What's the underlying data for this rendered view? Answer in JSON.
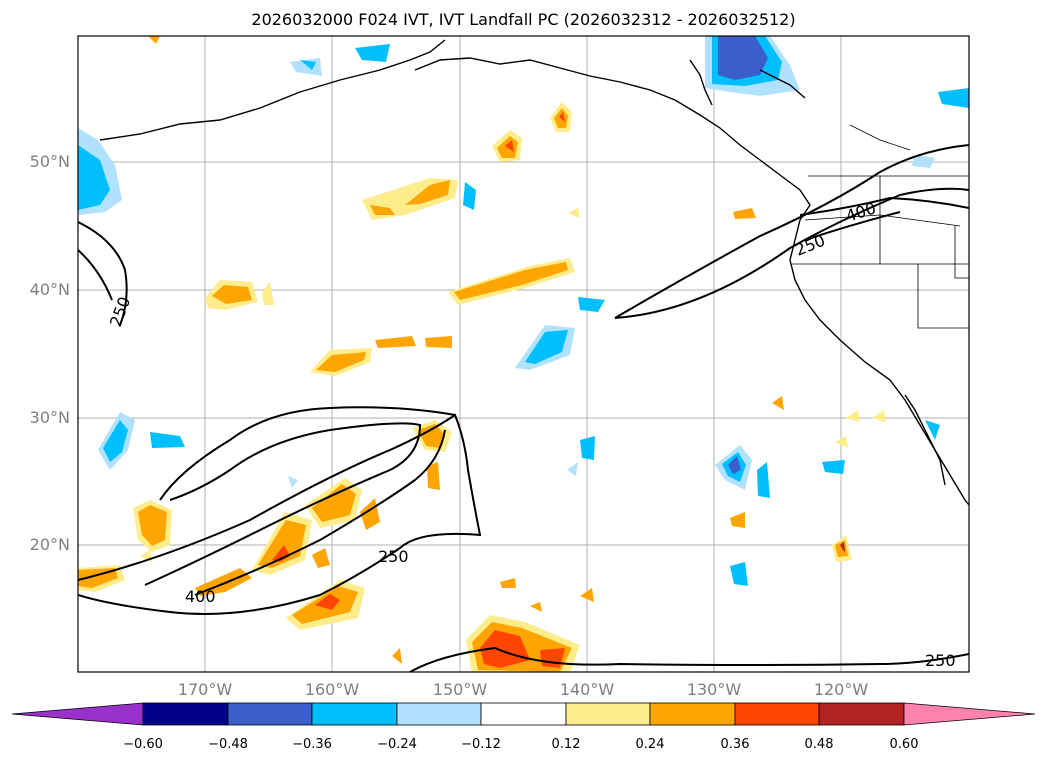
{
  "title": "2026032000 F024 IVT, IVT Landfall PC (2026032312 - 2026032512)",
  "axes": {
    "lat_labels": [
      "50°N",
      "40°N",
      "30°N",
      "20°N"
    ],
    "lon_labels": [
      "170°W",
      "160°W",
      "150°W",
      "140°W",
      "130°W",
      "120°W"
    ]
  },
  "contour_labels": [
    "250",
    "250",
    "400",
    "250",
    "400",
    "250"
  ],
  "colorbar": {
    "ticks": [
      "−0.60",
      "−0.48",
      "−0.36",
      "−0.24",
      "−0.12",
      "0.12",
      "0.24",
      "0.36",
      "0.48",
      "0.60"
    ],
    "colors": {
      "under": "#9932cc",
      "bins": [
        "#00008b",
        "#3a5fcd",
        "#00bfff",
        "#b0e2ff",
        "#ffffff",
        "#ffec8b",
        "#ffa500",
        "#ff4500",
        "#b22222"
      ],
      "over": "#ff82ab"
    }
  },
  "colors": {
    "gridline": "#b0b0b0",
    "coast": "#000000",
    "label": "#808080"
  }
}
